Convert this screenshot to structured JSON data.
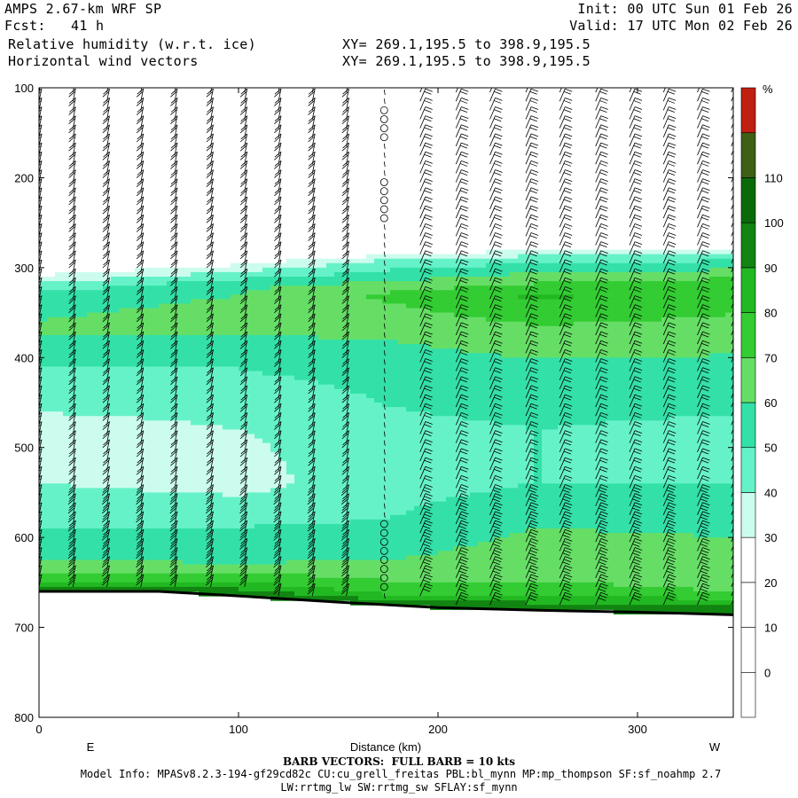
{
  "header": {
    "title": "AMPS 2.67-km WRF SP",
    "init": "Init: 00 UTC Sun 01 Feb 26",
    "fcst_label": "Fcst:",
    "fcst_value": "41 h",
    "valid": "Valid: 17 UTC Mon 02 Feb 26",
    "field1": "Relative humidity (w.r.t. ice)",
    "field2": "Horizontal wind vectors",
    "xy1": "XY= 269.1,195.5 to 398.9,195.5",
    "xy2": "XY= 269.1,195.5 to 398.9,195.5"
  },
  "footer": {
    "barb_note": "BARB VECTORS:  FULL BARB = 10 kts",
    "model_info": "Model Info: MPASv8.2.3-194-gf29cd82c CU:cu_grell_freitas PBL:bl_mynn MP:mp_thompson SF:sf_noahmp 2.7",
    "model_info2": "LW:rrtmg_lw SW:rrtmg_sw SFLAY:sf_mynn"
  },
  "chart_data": {
    "type": "heatmap",
    "title": "Relative humidity (w.r.t. ice)",
    "xlabel": "Distance (km)",
    "ylabel": "",
    "xlim": [
      0,
      348
    ],
    "ylim": [
      800,
      100
    ],
    "x_ticks": [
      0,
      100,
      200,
      300
    ],
    "y_ticks": [
      100,
      200,
      300,
      400,
      500,
      600,
      700,
      800
    ],
    "x_endpoints": {
      "left": "E",
      "right": "W"
    },
    "colorbar": {
      "unit": "%",
      "levels": [
        0,
        10,
        20,
        30,
        40,
        50,
        60,
        70,
        80,
        90,
        100,
        110
      ],
      "colors": [
        "#ffffff",
        "#ffffff",
        "#ffffff",
        "#ffffff",
        "#ccfcee",
        "#66f2c8",
        "#33e0a8",
        "#66de66",
        "#33cc33",
        "#22b822",
        "#118411",
        "#0a6a0a",
        "#3e6016",
        "#c02010"
      ]
    },
    "rh_profiles_by_x": [
      {
        "x": 0,
        "rh_pct": [
          [
            300,
            20
          ],
          [
            310,
            32
          ],
          [
            330,
            55
          ],
          [
            370,
            62
          ],
          [
            400,
            52
          ],
          [
            440,
            45
          ],
          [
            470,
            38
          ],
          [
            520,
            35
          ],
          [
            560,
            45
          ],
          [
            600,
            52
          ],
          [
            640,
            66
          ],
          [
            655,
            90
          ],
          [
            660,
            105
          ]
        ]
      },
      {
        "x": 100,
        "rh_pct": [
          [
            290,
            20
          ],
          [
            300,
            35
          ],
          [
            320,
            58
          ],
          [
            360,
            65
          ],
          [
            400,
            52
          ],
          [
            460,
            42
          ],
          [
            500,
            38
          ],
          [
            540,
            36
          ],
          [
            580,
            48
          ],
          [
            630,
            60
          ],
          [
            650,
            80
          ],
          [
            665,
            100
          ]
        ]
      },
      {
        "x": 175,
        "rh_pct": [
          [
            280,
            20
          ],
          [
            290,
            40
          ],
          [
            330,
            72
          ],
          [
            380,
            60
          ],
          [
            430,
            52
          ],
          [
            480,
            48
          ],
          [
            540,
            46
          ],
          [
            580,
            50
          ],
          [
            620,
            58
          ],
          [
            660,
            75
          ],
          [
            675,
            100
          ]
        ]
      },
      {
        "x": 250,
        "rh_pct": [
          [
            275,
            20
          ],
          [
            290,
            45
          ],
          [
            330,
            82
          ],
          [
            370,
            68
          ],
          [
            420,
            55
          ],
          [
            480,
            50
          ],
          [
            540,
            50
          ],
          [
            600,
            62
          ],
          [
            660,
            72
          ],
          [
            680,
            100
          ]
        ]
      },
      {
        "x": 348,
        "rh_pct": [
          [
            275,
            20
          ],
          [
            290,
            48
          ],
          [
            320,
            78
          ],
          [
            360,
            68
          ],
          [
            420,
            55
          ],
          [
            480,
            48
          ],
          [
            540,
            50
          ],
          [
            600,
            60
          ],
          [
            660,
            70
          ],
          [
            685,
            100
          ]
        ]
      }
    ],
    "terrain_pressure_hPa": [
      [
        0,
        660
      ],
      [
        60,
        660
      ],
      [
        100,
        665
      ],
      [
        150,
        672
      ],
      [
        200,
        678
      ],
      [
        250,
        681
      ],
      [
        300,
        683
      ],
      [
        348,
        686
      ]
    ],
    "wind_barb_columns_km": [
      0,
      17,
      34,
      51,
      68,
      86,
      103,
      120,
      137,
      154,
      173,
      191,
      209,
      226,
      244,
      261,
      279,
      296,
      313,
      330,
      347
    ],
    "calm_column_km": 173,
    "barb_units": "FULL BARB = 10 kts"
  }
}
